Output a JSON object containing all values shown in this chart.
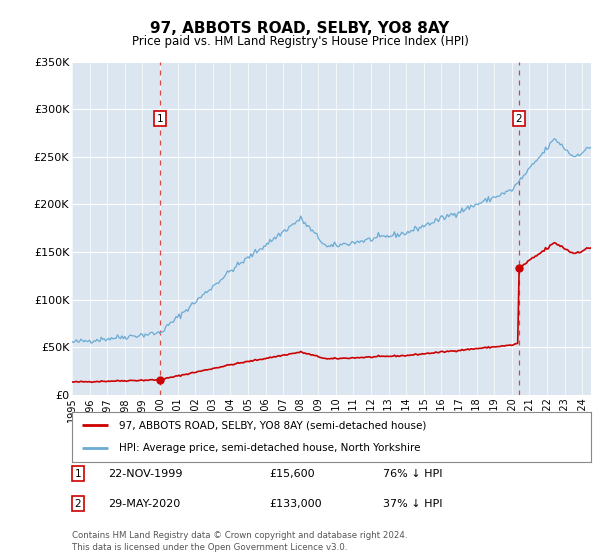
{
  "title": "97, ABBOTS ROAD, SELBY, YO8 8AY",
  "subtitle": "Price paid vs. HM Land Registry's House Price Index (HPI)",
  "sale1_date": 2000.0,
  "sale1_price": 15600,
  "sale1_label": "1",
  "sale1_text": "22-NOV-1999",
  "sale1_amount": "£15,600",
  "sale1_pct": "76% ↓ HPI",
  "sale2_date": 2020.4,
  "sale2_price": 133000,
  "sale2_label": "2",
  "sale2_text": "29-MAY-2020",
  "sale2_amount": "£133,000",
  "sale2_pct": "37% ↓ HPI",
  "hpi_color": "#6aaad4",
  "price_color": "#cc0000",
  "bg_color": "#dce6f1",
  "legend_label1": "97, ABBOTS ROAD, SELBY, YO8 8AY (semi-detached house)",
  "legend_label2": "HPI: Average price, semi-detached house, North Yorkshire",
  "footer": "Contains HM Land Registry data © Crown copyright and database right 2024.\nThis data is licensed under the Open Government Licence v3.0.",
  "ylim": [
    0,
    350000
  ],
  "yticks": [
    0,
    50000,
    100000,
    150000,
    200000,
    250000,
    300000,
    350000
  ],
  "ytick_labels": [
    "£0",
    "£50K",
    "£100K",
    "£150K",
    "£200K",
    "£250K",
    "£300K",
    "£350K"
  ]
}
